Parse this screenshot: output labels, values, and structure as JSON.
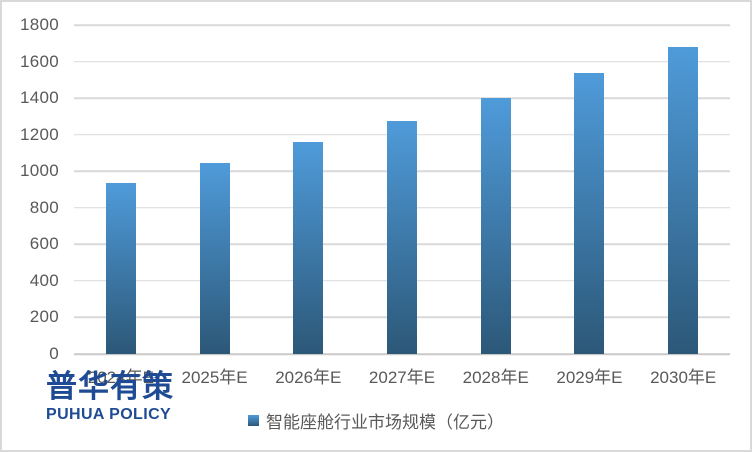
{
  "chart_data": {
    "type": "bar",
    "title": "",
    "categories": [
      "2024年E",
      "2025年E",
      "2026年E",
      "2027年E",
      "2028年E",
      "2029年E",
      "2030年E"
    ],
    "values": [
      935,
      1045,
      1160,
      1275,
      1400,
      1540,
      1680
    ],
    "series_name": "智能座舱行业市场规模（亿元）",
    "xlabel": "",
    "ylabel": "",
    "ylim": [
      0,
      1800
    ],
    "y_ticks": [
      1800,
      1600,
      1400,
      1200,
      1000,
      800,
      600,
      400,
      200,
      0
    ],
    "grid": true,
    "legend_position": "bottom",
    "colors": {
      "bar_top": "#4F9BDA",
      "bar_bottom": "#2C5878",
      "gridline": "#D9D9D9",
      "axis_text": "#595959",
      "border": "#D9D9D9"
    }
  },
  "legend": {
    "label": "智能座舱行业市场规模（亿元）"
  },
  "logo": {
    "name_cn": "普华有策",
    "name_en": "PUHUA POLICY",
    "color": "#1E4B94"
  }
}
